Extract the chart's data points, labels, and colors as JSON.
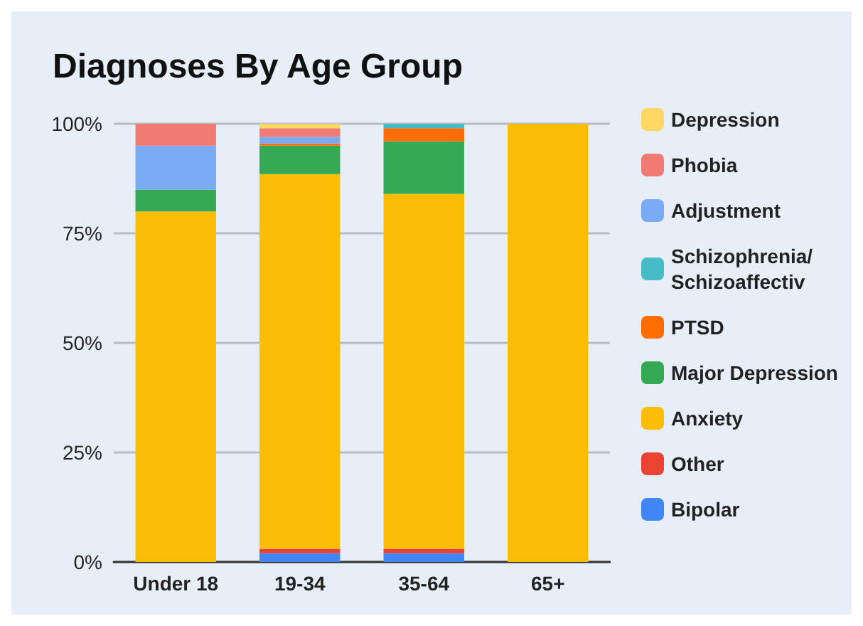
{
  "chart_data": {
    "type": "bar",
    "title": "Diagnoses By Age Group",
    "stacked": true,
    "categories": [
      "Under 18",
      "19-34",
      "35-64",
      "65+"
    ],
    "series": [
      {
        "name": "Bipolar",
        "color": "#4285f4",
        "values": [
          0,
          2,
          2,
          0
        ]
      },
      {
        "name": "Other",
        "color": "#ea4335",
        "values": [
          0,
          1,
          1,
          0
        ]
      },
      {
        "name": "Anxiety",
        "color": "#fbbc04",
        "values": [
          80,
          85.5,
          81,
          100
        ]
      },
      {
        "name": "Major Depression",
        "color": "#34a853",
        "values": [
          5,
          6.5,
          12,
          0
        ]
      },
      {
        "name": "PTSD",
        "color": "#ff6d01",
        "values": [
          0,
          0.5,
          3,
          0
        ]
      },
      {
        "name": "Schizophrenia/Schizoaffectiv",
        "color": "#46bdc6",
        "values": [
          0,
          0,
          1,
          0
        ]
      },
      {
        "name": "Adjustment",
        "color": "#7baaf7",
        "values": [
          10,
          1.5,
          0,
          0
        ]
      },
      {
        "name": "Phobia",
        "color": "#f07b72",
        "values": [
          5,
          2,
          0,
          0
        ]
      },
      {
        "name": "Depression",
        "color": "#fdd663",
        "values": [
          0,
          1,
          0,
          0
        ]
      }
    ],
    "ylim": [
      0,
      100
    ],
    "yticks": [
      {
        "value": 0,
        "label": "0%"
      },
      {
        "value": 25,
        "label": "25%"
      },
      {
        "value": 50,
        "label": "50%"
      },
      {
        "value": 75,
        "label": "75%"
      },
      {
        "value": 100,
        "label": "100%"
      }
    ],
    "grid": "y",
    "legend": "right"
  }
}
